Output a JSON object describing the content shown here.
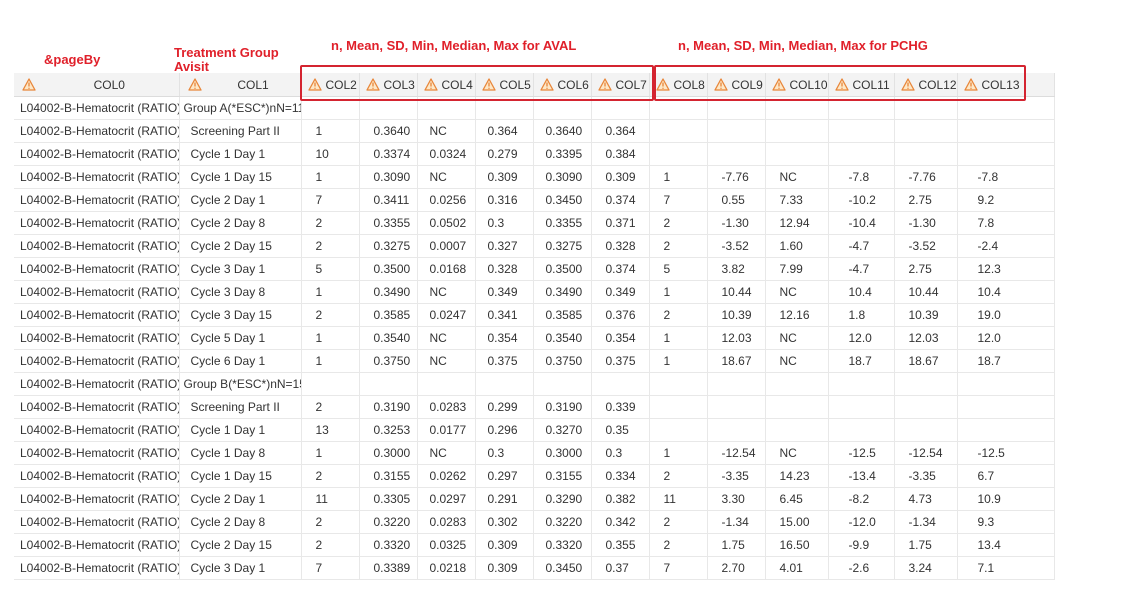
{
  "annotations": {
    "page_by": "&pageBy",
    "treatment_group": "Treatment Group",
    "avisit": "Avisit",
    "aval_stats": "n, Mean, SD, Min, Median, Max for AVAL",
    "pchg_stats": "n, Mean, SD, Min, Median, Max for PCHG",
    "color": "#e0202a"
  },
  "columns": [
    "COL0",
    "COL1",
    "COL2",
    "COL3",
    "COL4",
    "COL5",
    "COL6",
    "COL7",
    "COL8",
    "COL9",
    "COL10",
    "COL11",
    "COL12",
    "COL13"
  ],
  "column_icon": "warning-triangle-icon",
  "rows": [
    [
      "L04002-B-Hematocrit (RATIO)",
      "Group A(*ESC*)nN=11",
      "",
      "",
      "",
      "",
      "",
      "",
      "",
      "",
      "",
      "",
      "",
      ""
    ],
    [
      "L04002-B-Hematocrit (RATIO)",
      "Screening Part II",
      "1",
      "0.3640",
      "NC",
      "0.364",
      "0.3640",
      "0.364",
      "",
      "",
      "",
      "",
      "",
      ""
    ],
    [
      "L04002-B-Hematocrit (RATIO)",
      "Cycle 1 Day 1",
      "10",
      "0.3374",
      "0.0324",
      "0.279",
      "0.3395",
      "0.384",
      "",
      "",
      "",
      "",
      "",
      ""
    ],
    [
      "L04002-B-Hematocrit (RATIO)",
      "Cycle 1 Day 15",
      "1",
      "0.3090",
      "NC",
      "0.309",
      "0.3090",
      "0.309",
      "1",
      "-7.76",
      "NC",
      "-7.8",
      "-7.76",
      "-7.8"
    ],
    [
      "L04002-B-Hematocrit (RATIO)",
      "Cycle 2 Day 1",
      "7",
      "0.3411",
      "0.0256",
      "0.316",
      "0.3450",
      "0.374",
      "7",
      "0.55",
      "7.33",
      "-10.2",
      "2.75",
      "9.2"
    ],
    [
      "L04002-B-Hematocrit (RATIO)",
      "Cycle 2 Day 8",
      "2",
      "0.3355",
      "0.0502",
      "0.3",
      "0.3355",
      "0.371",
      "2",
      "-1.30",
      "12.94",
      "-10.4",
      "-1.30",
      "7.8"
    ],
    [
      "L04002-B-Hematocrit (RATIO)",
      "Cycle 2 Day 15",
      "2",
      "0.3275",
      "0.0007",
      "0.327",
      "0.3275",
      "0.328",
      "2",
      "-3.52",
      "1.60",
      "-4.7",
      "-3.52",
      "-2.4"
    ],
    [
      "L04002-B-Hematocrit (RATIO)",
      "Cycle 3 Day 1",
      "5",
      "0.3500",
      "0.0168",
      "0.328",
      "0.3500",
      "0.374",
      "5",
      "3.82",
      "7.99",
      "-4.7",
      "2.75",
      "12.3"
    ],
    [
      "L04002-B-Hematocrit (RATIO)",
      "Cycle 3 Day 8",
      "1",
      "0.3490",
      "NC",
      "0.349",
      "0.3490",
      "0.349",
      "1",
      "10.44",
      "NC",
      "10.4",
      "10.44",
      "10.4"
    ],
    [
      "L04002-B-Hematocrit (RATIO)",
      "Cycle 3 Day 15",
      "2",
      "0.3585",
      "0.0247",
      "0.341",
      "0.3585",
      "0.376",
      "2",
      "10.39",
      "12.16",
      "1.8",
      "10.39",
      "19.0"
    ],
    [
      "L04002-B-Hematocrit (RATIO)",
      "Cycle 5 Day 1",
      "1",
      "0.3540",
      "NC",
      "0.354",
      "0.3540",
      "0.354",
      "1",
      "12.03",
      "NC",
      "12.0",
      "12.03",
      "12.0"
    ],
    [
      "L04002-B-Hematocrit (RATIO)",
      "Cycle 6 Day 1",
      "1",
      "0.3750",
      "NC",
      "0.375",
      "0.3750",
      "0.375",
      "1",
      "18.67",
      "NC",
      "18.7",
      "18.67",
      "18.7"
    ],
    [
      "L04002-B-Hematocrit (RATIO)",
      "Group B(*ESC*)nN=15",
      "",
      "",
      "",
      "",
      "",
      "",
      "",
      "",
      "",
      "",
      "",
      ""
    ],
    [
      "L04002-B-Hematocrit (RATIO)",
      "Screening Part II",
      "2",
      "0.3190",
      "0.0283",
      "0.299",
      "0.3190",
      "0.339",
      "",
      "",
      "",
      "",
      "",
      ""
    ],
    [
      "L04002-B-Hematocrit (RATIO)",
      "Cycle 1 Day 1",
      "13",
      "0.3253",
      "0.0177",
      "0.296",
      "0.3270",
      "0.35",
      "",
      "",
      "",
      "",
      "",
      ""
    ],
    [
      "L04002-B-Hematocrit (RATIO)",
      "Cycle 1 Day 8",
      "1",
      "0.3000",
      "NC",
      "0.3",
      "0.3000",
      "0.3",
      "1",
      "-12.54",
      "NC",
      "-12.5",
      "-12.54",
      "-12.5"
    ],
    [
      "L04002-B-Hematocrit (RATIO)",
      "Cycle 1 Day 15",
      "2",
      "0.3155",
      "0.0262",
      "0.297",
      "0.3155",
      "0.334",
      "2",
      "-3.35",
      "14.23",
      "-13.4",
      "-3.35",
      "6.7"
    ],
    [
      "L04002-B-Hematocrit (RATIO)",
      "Cycle 2 Day 1",
      "11",
      "0.3305",
      "0.0297",
      "0.291",
      "0.3290",
      "0.382",
      "11",
      "3.30",
      "6.45",
      "-8.2",
      "4.73",
      "10.9"
    ],
    [
      "L04002-B-Hematocrit (RATIO)",
      "Cycle 2 Day 8",
      "2",
      "0.3220",
      "0.0283",
      "0.302",
      "0.3220",
      "0.342",
      "2",
      "-1.34",
      "15.00",
      "-12.0",
      "-1.34",
      "9.3"
    ],
    [
      "L04002-B-Hematocrit (RATIO)",
      "Cycle 2 Day 15",
      "2",
      "0.3320",
      "0.0325",
      "0.309",
      "0.3320",
      "0.355",
      "2",
      "1.75",
      "16.50",
      "-9.9",
      "1.75",
      "13.4"
    ],
    [
      "L04002-B-Hematocrit (RATIO)",
      "Cycle 3 Day 1",
      "7",
      "0.3389",
      "0.0218",
      "0.309",
      "0.3450",
      "0.37",
      "7",
      "2.70",
      "4.01",
      "-2.6",
      "3.24",
      "7.1"
    ]
  ]
}
